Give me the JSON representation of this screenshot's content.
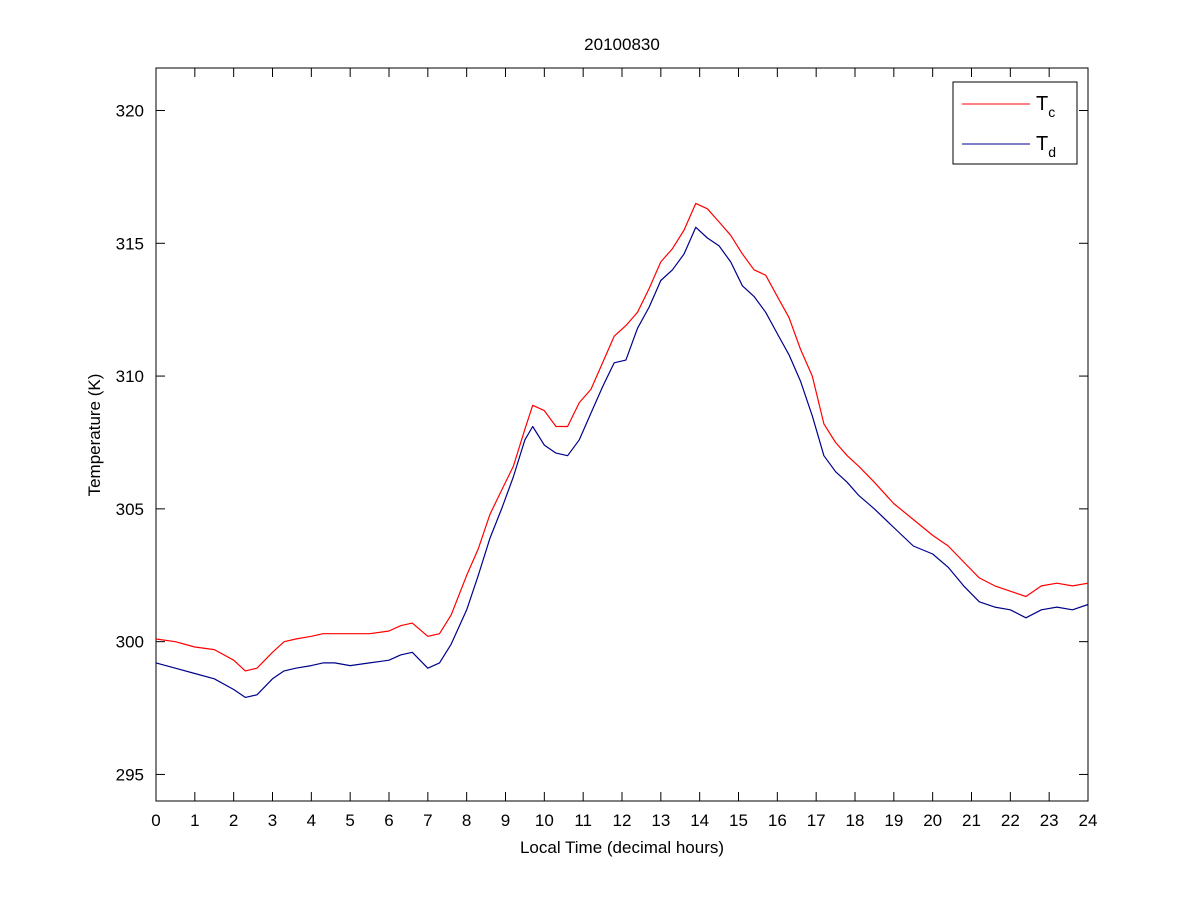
{
  "chart_data": {
    "type": "line",
    "title": "20100830",
    "xlabel": "Local Time (decimal hours)",
    "ylabel": "Temperature (K)",
    "xlim": [
      0,
      24
    ],
    "ylim": [
      294,
      321.6
    ],
    "xticks": [
      0,
      1,
      2,
      3,
      4,
      5,
      6,
      7,
      8,
      9,
      10,
      11,
      12,
      13,
      14,
      15,
      16,
      17,
      18,
      19,
      20,
      21,
      22,
      23,
      24
    ],
    "yticks": [
      295,
      300,
      305,
      310,
      315,
      320
    ],
    "grid": false,
    "legend": {
      "placement": "top-right",
      "entries": [
        {
          "main": "T",
          "sub": "c",
          "color": "#ff0000"
        },
        {
          "main": "T",
          "sub": "d",
          "color": "#00008b"
        }
      ]
    },
    "series": [
      {
        "color": "#ff0000",
        "x": [
          0,
          0.5,
          1,
          1.5,
          2,
          2.3,
          2.6,
          3,
          3.3,
          3.6,
          4,
          4.3,
          4.6,
          5,
          5.5,
          6,
          6.3,
          6.6,
          7,
          7.3,
          7.6,
          8,
          8.3,
          8.6,
          8.9,
          9.2,
          9.5,
          9.7,
          10,
          10.3,
          10.6,
          10.9,
          11.2,
          11.5,
          11.8,
          12.1,
          12.4,
          12.7,
          13,
          13.3,
          13.6,
          13.9,
          14.2,
          14.5,
          14.8,
          15.1,
          15.4,
          15.7,
          16,
          16.3,
          16.6,
          16.9,
          17.2,
          17.5,
          17.8,
          18.1,
          18.5,
          19,
          19.5,
          20,
          20.4,
          20.8,
          21.2,
          21.6,
          22,
          22.4,
          22.8,
          23.2,
          23.6,
          24
        ],
        "y": [
          300.1,
          300.0,
          299.8,
          299.7,
          299.3,
          298.9,
          299.0,
          299.6,
          300.0,
          300.1,
          300.2,
          300.3,
          300.3,
          300.3,
          300.3,
          300.4,
          300.6,
          300.7,
          300.2,
          300.3,
          301.0,
          302.5,
          303.5,
          304.8,
          305.7,
          306.6,
          308.0,
          308.9,
          308.7,
          308.1,
          308.1,
          309.0,
          309.5,
          310.5,
          311.5,
          311.9,
          312.4,
          313.3,
          314.3,
          314.8,
          315.5,
          316.5,
          316.3,
          315.8,
          315.3,
          314.6,
          314.0,
          313.8,
          313.0,
          312.2,
          311.0,
          310.0,
          308.2,
          307.5,
          307.0,
          306.6,
          306.0,
          305.2,
          304.6,
          304.0,
          303.6,
          303.0,
          302.4,
          302.1,
          301.9,
          301.7,
          302.1,
          302.2,
          302.1,
          302.2
        ]
      },
      {
        "color": "#00008b",
        "x": [
          0,
          0.5,
          1,
          1.5,
          2,
          2.3,
          2.6,
          3,
          3.3,
          3.6,
          4,
          4.3,
          4.6,
          5,
          5.5,
          6,
          6.3,
          6.6,
          7,
          7.3,
          7.6,
          8,
          8.3,
          8.6,
          8.9,
          9.2,
          9.5,
          9.7,
          10,
          10.3,
          10.6,
          10.9,
          11.2,
          11.5,
          11.8,
          12.1,
          12.4,
          12.7,
          13,
          13.3,
          13.6,
          13.9,
          14.2,
          14.5,
          14.8,
          15.1,
          15.4,
          15.7,
          16,
          16.3,
          16.6,
          16.9,
          17.2,
          17.5,
          17.8,
          18.1,
          18.5,
          19,
          19.5,
          20,
          20.4,
          20.8,
          21.2,
          21.6,
          22,
          22.4,
          22.8,
          23.2,
          23.6,
          24
        ],
        "y": [
          299.2,
          299.0,
          298.8,
          298.6,
          298.2,
          297.9,
          298.0,
          298.6,
          298.9,
          299.0,
          299.1,
          299.2,
          299.2,
          299.1,
          299.2,
          299.3,
          299.5,
          299.6,
          299.0,
          299.2,
          299.9,
          301.2,
          302.5,
          303.9,
          305.0,
          306.2,
          307.6,
          308.1,
          307.4,
          307.1,
          307.0,
          307.6,
          308.6,
          309.6,
          310.5,
          310.6,
          311.8,
          312.6,
          313.6,
          314.0,
          314.6,
          315.6,
          315.2,
          314.9,
          314.3,
          313.4,
          313.0,
          312.4,
          311.6,
          310.8,
          309.8,
          308.5,
          307.0,
          306.4,
          306.0,
          305.5,
          305.0,
          304.3,
          303.6,
          303.3,
          302.8,
          302.1,
          301.5,
          301.3,
          301.2,
          300.9,
          301.2,
          301.3,
          301.2,
          301.4
        ]
      }
    ]
  }
}
